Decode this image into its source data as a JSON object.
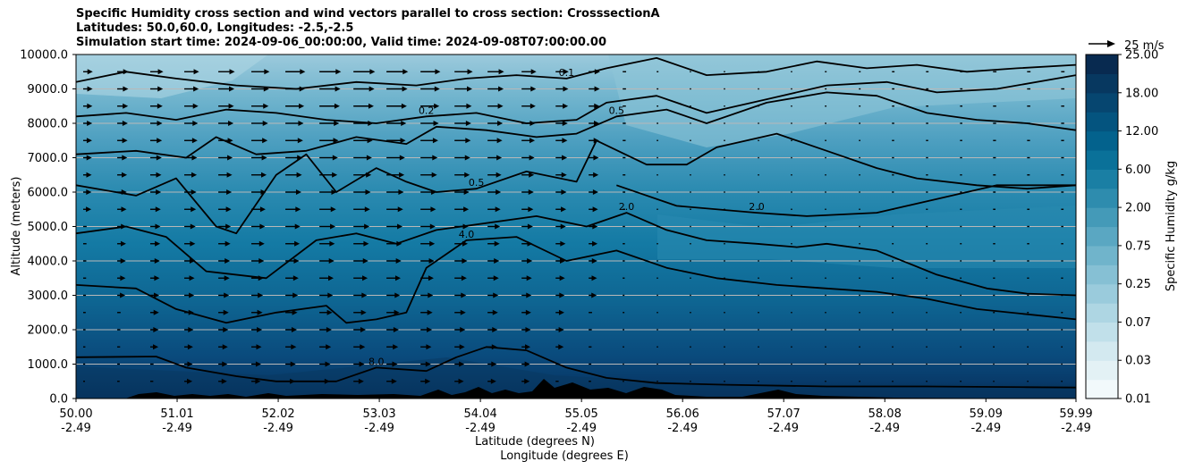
{
  "title_lines": [
    "Specific Humidity cross section and wind vectors parallel to cross section: CrosssectionA",
    "Latitudes: 50.0,60.0, Longitudes: -2.5,-2.5",
    "Simulation start time: 2024-09-06_00:00:00, Valid time: 2024-09-08T07:00:00.00"
  ],
  "chart_data": {
    "type": "heatmap",
    "title": "Specific Humidity cross section and wind vectors parallel to cross section: CrosssectionA",
    "ylabel": "Altitude (meters)",
    "xlabel_lat": "Latitude (degrees N)",
    "xlabel_lon": "Longitude (degrees E)",
    "ylim": [
      0,
      10000
    ],
    "xlim": [
      50.0,
      59.99
    ],
    "y_ticks": [
      "0.0",
      "1000.0",
      "2000.0",
      "3000.0",
      "4000.0",
      "5000.0",
      "6000.0",
      "7000.0",
      "8000.0",
      "9000.0",
      "10000.0"
    ],
    "x_ticks": [
      {
        "lat": "50.00",
        "lon": "-2.49",
        "pos": 50.0
      },
      {
        "lat": "51.01",
        "lon": "-2.49",
        "pos": 51.01
      },
      {
        "lat": "52.02",
        "lon": "-2.49",
        "pos": 52.02
      },
      {
        "lat": "53.03",
        "lon": "-2.49",
        "pos": 53.03
      },
      {
        "lat": "54.04",
        "lon": "-2.49",
        "pos": 54.04
      },
      {
        "lat": "55.05",
        "lon": "-2.49",
        "pos": 55.05
      },
      {
        "lat": "56.06",
        "lon": "-2.49",
        "pos": 56.06
      },
      {
        "lat": "57.07",
        "lon": "-2.49",
        "pos": 57.07
      },
      {
        "lat": "58.08",
        "lon": "-2.49",
        "pos": 58.08
      },
      {
        "lat": "59.09",
        "lon": "-2.49",
        "pos": 59.09
      },
      {
        "lat": "59.99",
        "lon": "-2.49",
        "pos": 59.99
      }
    ],
    "colorbar": {
      "label": "Specific Humidity g/kg",
      "tick_labels": [
        "0.01",
        "0.03",
        "0.07",
        "0.25",
        "0.75",
        "2.00",
        "6.00",
        "12.00",
        "18.00",
        "25.00"
      ],
      "levels": [
        0.01,
        0.02,
        0.03,
        0.05,
        0.07,
        0.1,
        0.25,
        0.5,
        0.75,
        1.0,
        2.0,
        3.0,
        6.0,
        9.0,
        12.0,
        15.0,
        18.0,
        21.0,
        25.0
      ],
      "colors": [
        "#f2f9fb",
        "#e3f1f5",
        "#d3e9f0",
        "#c1e0ea",
        "#aed6e3",
        "#9acbdc",
        "#86c0d4",
        "#70b4cb",
        "#5aa7c2",
        "#449ab8",
        "#2e8cae",
        "#1a7fa4",
        "#0a7199",
        "#03628d",
        "#04547f",
        "#064670",
        "#073860",
        "#082a50"
      ]
    },
    "contour_labels": [
      "0.1",
      "0.2",
      "0.5",
      "2.0",
      "4.0",
      "8.0"
    ],
    "contours": [
      {
        "level": 8.0,
        "points": [
          [
            50.0,
            1200
          ],
          [
            50.8,
            1220
          ],
          [
            51.1,
            900
          ],
          [
            51.6,
            650
          ],
          [
            52.0,
            500
          ],
          [
            52.6,
            500
          ],
          [
            53.0,
            900
          ],
          [
            53.5,
            800
          ],
          [
            53.8,
            1200
          ],
          [
            54.1,
            1500
          ],
          [
            54.5,
            1400
          ],
          [
            54.9,
            900
          ],
          [
            55.3,
            600
          ],
          [
            55.8,
            450
          ],
          [
            56.5,
            400
          ],
          [
            57.5,
            350
          ],
          [
            58.5,
            350
          ],
          [
            59.5,
            330
          ],
          [
            59.99,
            320
          ]
        ]
      },
      {
        "level": 4.0,
        "points": [
          [
            50.0,
            3300
          ],
          [
            50.6,
            3200
          ],
          [
            51.0,
            2600
          ],
          [
            51.5,
            2200
          ],
          [
            52.0,
            2500
          ],
          [
            52.5,
            2700
          ],
          [
            52.7,
            2200
          ],
          [
            53.0,
            2300
          ],
          [
            53.3,
            2500
          ],
          [
            53.5,
            3800
          ],
          [
            53.9,
            4600
          ],
          [
            54.4,
            4700
          ],
          [
            54.9,
            4000
          ],
          [
            55.4,
            4300
          ],
          [
            55.9,
            3800
          ],
          [
            56.4,
            3500
          ],
          [
            57.0,
            3300
          ],
          [
            57.5,
            3200
          ],
          [
            58.0,
            3100
          ],
          [
            58.5,
            2900
          ],
          [
            59.0,
            2600
          ],
          [
            59.5,
            2450
          ],
          [
            59.99,
            2300
          ]
        ]
      },
      {
        "level": 2.0,
        "points": [
          [
            50.0,
            4800
          ],
          [
            50.5,
            5000
          ],
          [
            50.9,
            4700
          ],
          [
            51.3,
            3700
          ],
          [
            51.9,
            3500
          ],
          [
            52.4,
            4600
          ],
          [
            52.8,
            4800
          ],
          [
            53.2,
            4500
          ],
          [
            53.6,
            4900
          ],
          [
            54.1,
            5100
          ],
          [
            54.6,
            5300
          ],
          [
            55.1,
            5000
          ],
          [
            55.5,
            5400
          ],
          [
            55.9,
            4900
          ],
          [
            56.3,
            4600
          ],
          [
            56.8,
            4500
          ],
          [
            57.2,
            4400
          ],
          [
            57.5,
            4500
          ],
          [
            58.0,
            4300
          ],
          [
            58.6,
            3600
          ],
          [
            59.1,
            3200
          ],
          [
            59.5,
            3050
          ],
          [
            59.99,
            3000
          ]
        ]
      },
      {
        "level": 2.0,
        "points": [
          [
            55.4,
            6200
          ],
          [
            56.0,
            5600
          ],
          [
            56.8,
            5400
          ],
          [
            57.3,
            5300
          ],
          [
            58.0,
            5400
          ],
          [
            58.6,
            5800
          ],
          [
            59.2,
            6200
          ],
          [
            59.99,
            6200
          ]
        ]
      },
      {
        "level": 0.5,
        "points": [
          [
            50.0,
            6200
          ],
          [
            50.6,
            5900
          ],
          [
            51.0,
            6400
          ],
          [
            51.4,
            5000
          ],
          [
            51.6,
            4800
          ],
          [
            52.0,
            6500
          ],
          [
            52.3,
            7100
          ],
          [
            52.6,
            6000
          ],
          [
            53.0,
            6700
          ],
          [
            53.3,
            6300
          ],
          [
            53.6,
            6000
          ],
          [
            54.0,
            6100
          ],
          [
            54.5,
            6600
          ],
          [
            55.0,
            6300
          ],
          [
            55.2,
            7500
          ],
          [
            55.7,
            6800
          ],
          [
            56.1,
            6800
          ],
          [
            56.4,
            7300
          ],
          [
            57.0,
            7700
          ],
          [
            57.5,
            7200
          ],
          [
            58.0,
            6700
          ],
          [
            58.4,
            6400
          ],
          [
            59.0,
            6200
          ],
          [
            59.5,
            6100
          ],
          [
            59.99,
            6200
          ]
        ]
      },
      {
        "level": 0.5,
        "points": [
          [
            50.0,
            7100
          ],
          [
            50.6,
            7200
          ],
          [
            51.1,
            7000
          ],
          [
            51.4,
            7600
          ],
          [
            51.8,
            7100
          ],
          [
            52.3,
            7200
          ],
          [
            52.8,
            7600
          ],
          [
            53.3,
            7400
          ],
          [
            53.6,
            7900
          ],
          [
            54.1,
            7800
          ],
          [
            54.6,
            7600
          ],
          [
            55.0,
            7700
          ],
          [
            55.4,
            8200
          ],
          [
            55.9,
            8400
          ],
          [
            56.3,
            8000
          ],
          [
            56.9,
            8600
          ],
          [
            57.5,
            8900
          ],
          [
            58.0,
            8800
          ],
          [
            58.5,
            8300
          ],
          [
            59.0,
            8100
          ],
          [
            59.5,
            8000
          ],
          [
            59.99,
            7800
          ]
        ]
      },
      {
        "level": 0.2,
        "points": [
          [
            50.0,
            8200
          ],
          [
            50.5,
            8300
          ],
          [
            51.0,
            8100
          ],
          [
            51.5,
            8400
          ],
          [
            52.0,
            8300
          ],
          [
            52.5,
            8100
          ],
          [
            53.0,
            8000
          ],
          [
            53.5,
            8200
          ],
          [
            54.0,
            8300
          ],
          [
            54.5,
            8000
          ],
          [
            55.0,
            8100
          ],
          [
            55.3,
            8600
          ],
          [
            55.8,
            8800
          ],
          [
            56.3,
            8300
          ],
          [
            56.9,
            8700
          ],
          [
            57.5,
            9100
          ],
          [
            58.1,
            9200
          ],
          [
            58.6,
            8900
          ],
          [
            59.2,
            9000
          ],
          [
            59.99,
            9400
          ]
        ]
      },
      {
        "level": 0.1,
        "points": [
          [
            50.0,
            9200
          ],
          [
            50.5,
            9500
          ],
          [
            51.0,
            9300
          ],
          [
            51.6,
            9100
          ],
          [
            52.2,
            9000
          ],
          [
            52.8,
            9200
          ],
          [
            53.4,
            9100
          ],
          [
            53.9,
            9300
          ],
          [
            54.4,
            9400
          ],
          [
            54.9,
            9300
          ],
          [
            55.3,
            9600
          ],
          [
            55.8,
            9900
          ],
          [
            56.3,
            9400
          ],
          [
            56.9,
            9500
          ],
          [
            57.4,
            9800
          ],
          [
            57.9,
            9600
          ],
          [
            58.4,
            9700
          ],
          [
            58.9,
            9500
          ],
          [
            59.4,
            9600
          ],
          [
            59.99,
            9700
          ]
        ]
      }
    ],
    "wind_reference": {
      "label": "25 m/s",
      "speed": 25
    },
    "wind_vectors": {
      "columns": [
        50.0,
        50.34,
        50.67,
        51.01,
        51.35,
        51.68,
        52.02,
        52.36,
        52.7,
        53.03,
        53.37,
        53.71,
        54.04,
        54.38,
        54.72,
        55.05,
        55.39,
        55.73,
        56.06,
        56.4,
        56.74,
        57.07,
        57.41,
        57.75,
        58.08,
        58.42,
        58.76,
        59.09,
        59.43,
        59.77
      ],
      "rows": [
        500,
        1000,
        1500,
        2000,
        2500,
        3000,
        3500,
        4000,
        4500,
        5000,
        5500,
        6000,
        6500,
        7000,
        7500,
        8000,
        8500,
        9000,
        9500
      ],
      "peak_speed_by_column": [
        6,
        8,
        10,
        12,
        14,
        16,
        18,
        20,
        20,
        20,
        18,
        16,
        14,
        12,
        10,
        8,
        4,
        2,
        1,
        1,
        1,
        1,
        2,
        2,
        3,
        3,
        3,
        4,
        4,
        4
      ]
    }
  }
}
